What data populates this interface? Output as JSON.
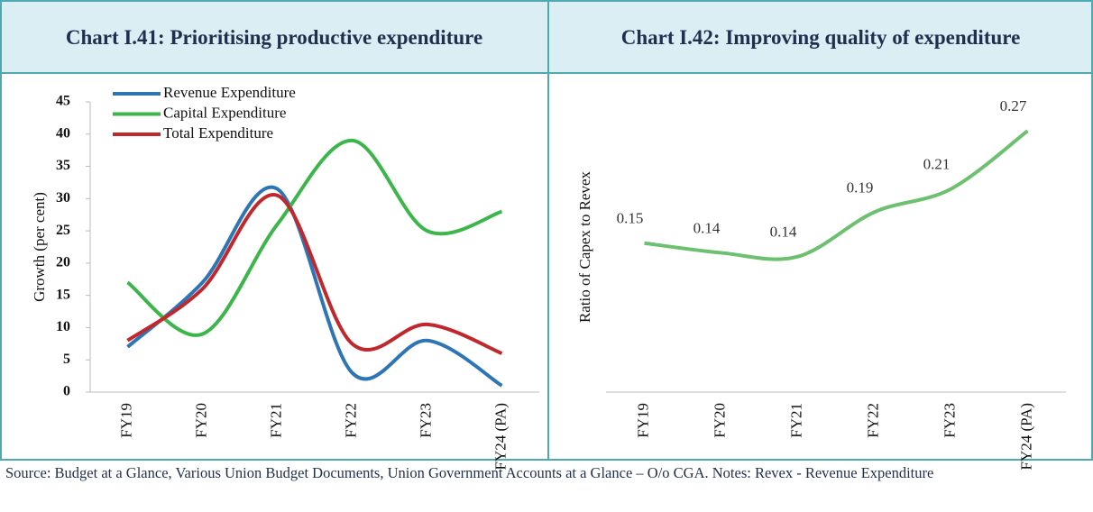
{
  "chart_data": [
    {
      "type": "line",
      "title": "Chart I.41: Prioritising productive expenditure",
      "y_label": "Growth (per cent)",
      "categories": [
        "FY19",
        "FY20",
        "FY21",
        "FY22",
        "FY23",
        "FY24 (PA)"
      ],
      "series": [
        {
          "name": "Revenue Expenditure",
          "color": "#2e75b6",
          "values": [
            7,
            17,
            31.5,
            3,
            8,
            1
          ]
        },
        {
          "name": "Capital Expenditure",
          "color": "#3cb64a",
          "values": [
            17,
            9,
            26,
            39,
            25,
            28
          ]
        },
        {
          "name": "Total Expenditure",
          "color": "#c0282d",
          "values": [
            8,
            16,
            30.5,
            7.5,
            10.5,
            6
          ]
        }
      ],
      "ylim": [
        0,
        45
      ],
      "yticks": [
        0,
        5,
        10,
        15,
        20,
        25,
        30,
        35,
        40,
        45
      ],
      "legend": "top-left"
    },
    {
      "type": "line",
      "title": "Chart I.42: Improving quality of expenditure",
      "y_label": "Ratio of Capex to Revex",
      "categories": [
        "FY19",
        "FY20",
        "FY21",
        "FY22",
        "FY23",
        "FY24 (PA)"
      ],
      "values": [
        0.154,
        0.144,
        0.14,
        0.186,
        0.21,
        0.27
      ],
      "value_labels": [
        "0.15",
        "0.14",
        "0.14",
        "0.19",
        "0.21",
        "0.27"
      ],
      "color": "#6cc070",
      "ylim": [
        0,
        0.3
      ]
    }
  ],
  "footer": "Source: Budget at a Glance, Various Union Budget Documents, Union Government Accounts at a Glance – O/o CGA. Notes: Revex - Revenue Expenditure"
}
